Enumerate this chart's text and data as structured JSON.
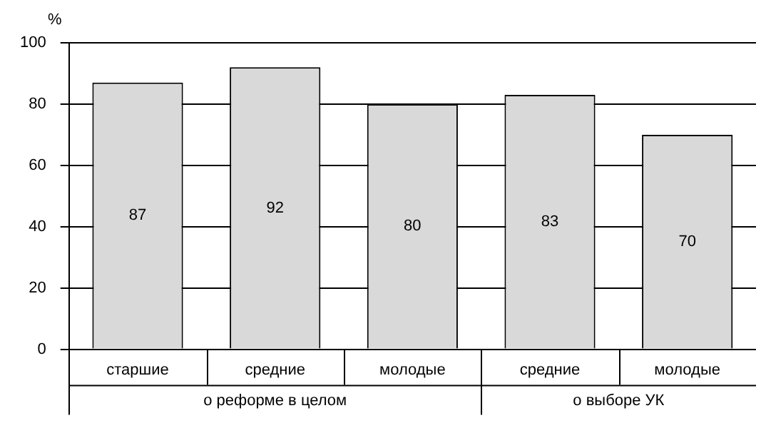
{
  "chart_data": {
    "type": "bar",
    "ylabel": "%",
    "categories": [
      "старшие",
      "средние",
      "молодые",
      "средние",
      "молодые"
    ],
    "values": [
      87,
      92,
      80,
      83,
      70
    ],
    "color": "#d9d9d9",
    "ylim": [
      0,
      100
    ],
    "yticks": [
      0,
      20,
      40,
      60,
      80,
      100
    ],
    "grid": "y",
    "data_labels": true,
    "legend": false,
    "annotations": [
      "о реформе в целом",
      "о выборе УК"
    ]
  }
}
